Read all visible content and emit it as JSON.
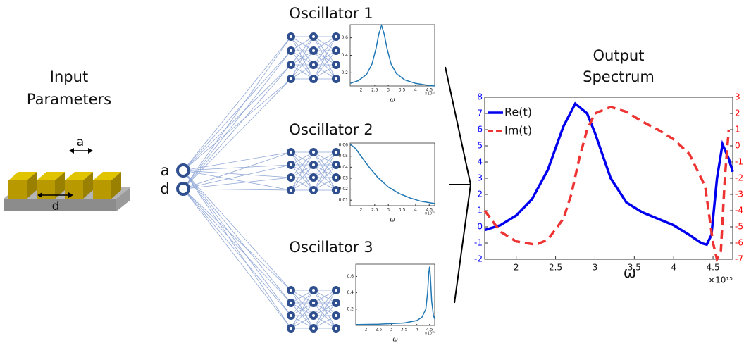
{
  "input": {
    "title": [
      "Input",
      "Parameters"
    ],
    "labels": [
      "a",
      "d"
    ]
  },
  "nodes": [
    "a",
    "d"
  ],
  "oscillators": [
    {
      "title": "Oscillator 1",
      "plot": {
        "x": [
          1.6,
          1.9,
          2.2,
          2.4,
          2.55,
          2.65,
          2.75,
          2.85,
          2.95,
          3.1,
          3.3,
          3.6,
          4.0,
          4.4,
          4.7
        ],
        "values": [
          0.08,
          0.11,
          0.18,
          0.3,
          0.48,
          0.64,
          0.74,
          0.64,
          0.48,
          0.3,
          0.19,
          0.12,
          0.08,
          0.06,
          0.05
        ],
        "xlim": [
          1.6,
          4.7
        ],
        "ylim": [
          0.05,
          0.75
        ],
        "xticks": [
          2,
          2.5,
          3,
          3.5,
          4,
          4.5
        ],
        "yticks": [
          0.2,
          0.4,
          0.6
        ],
        "xlabel": "ω",
        "x_exponent": "×10¹⁵",
        "color": "#1f77b4"
      }
    },
    {
      "title": "Oscillator 2",
      "plot": {
        "x": [
          1.6,
          1.8,
          2.0,
          2.3,
          2.6,
          3.0,
          3.4,
          3.8,
          4.2,
          4.7
        ],
        "values": [
          0.061,
          0.057,
          0.05,
          0.04,
          0.031,
          0.022,
          0.016,
          0.012,
          0.009,
          0.007
        ],
        "xlim": [
          1.6,
          4.7
        ],
        "ylim": [
          0.005,
          0.062
        ],
        "xticks": [
          2,
          2.5,
          3,
          3.5,
          4,
          4.5
        ],
        "yticks": [
          0.01,
          0.02,
          0.03,
          0.04,
          0.05,
          0.06
        ],
        "xlabel": "ω",
        "x_exponent": "×10¹⁵",
        "color": "#1f77b4"
      }
    },
    {
      "title": "Oscillator 3",
      "plot": {
        "x": [
          1.6,
          2.5,
          3.5,
          4.0,
          4.2,
          4.35,
          4.42,
          4.47,
          4.5,
          4.53,
          4.58,
          4.65,
          4.7
        ],
        "values": [
          0.01,
          0.015,
          0.03,
          0.06,
          0.1,
          0.2,
          0.4,
          0.65,
          0.72,
          0.6,
          0.3,
          0.12,
          0.08
        ],
        "xlim": [
          1.6,
          4.7
        ],
        "ylim": [
          0,
          0.75
        ],
        "xticks": [
          2,
          2.5,
          3,
          3.5,
          4,
          4.5
        ],
        "yticks": [
          0.2,
          0.4,
          0.6
        ],
        "xlabel": "ω",
        "x_exponent": "×10¹⁵",
        "color": "#1f77b4"
      }
    }
  ],
  "output": {
    "title": [
      "Output",
      "Spectrum"
    ],
    "chart": {
      "type": "line",
      "xlabel": "ω",
      "x_exponent": "×10¹⁵",
      "xlim": [
        1.6,
        4.75
      ],
      "xticks": [
        2,
        2.5,
        3,
        3.5,
        4,
        4.5
      ],
      "ylim": [
        -2,
        8
      ],
      "yticks": [
        -2,
        -1,
        0,
        1,
        2,
        3,
        4,
        5,
        6,
        7,
        8
      ],
      "y_tick_color": "#0000ff",
      "y2lim": [
        -7,
        3
      ],
      "y2ticks": [
        -7,
        -6,
        -5,
        -4,
        -3,
        -2,
        -1,
        0,
        1,
        2,
        3
      ],
      "y2_tick_color": "#ff0000",
      "legend": "upper left",
      "series": [
        {
          "name": "Re(t)",
          "color": "#0000ee",
          "dash": false,
          "x": [
            1.6,
            1.8,
            2.0,
            2.2,
            2.4,
            2.6,
            2.75,
            2.9,
            3.0,
            3.2,
            3.4,
            3.6,
            3.8,
            4.0,
            4.2,
            4.35,
            4.42,
            4.48,
            4.55,
            4.62,
            4.7,
            4.75
          ],
          "values": [
            -0.2,
            0.1,
            0.7,
            1.7,
            3.5,
            6.2,
            7.6,
            7.0,
            5.8,
            3.0,
            1.5,
            0.9,
            0.5,
            0.1,
            -0.5,
            -1.0,
            -1.1,
            -0.5,
            3.0,
            5.1,
            4.2,
            3.4
          ]
        },
        {
          "name": "Im(t)",
          "color": "#ee3333",
          "dash": true,
          "axis": "y2",
          "x": [
            1.6,
            1.8,
            2.0,
            2.25,
            2.4,
            2.6,
            2.7,
            2.8,
            2.9,
            3.0,
            3.2,
            3.4,
            3.6,
            3.8,
            4.0,
            4.2,
            4.4,
            4.5,
            4.55,
            4.6,
            4.65,
            4.7
          ],
          "values": [
            -4.0,
            -5.3,
            -5.9,
            -6.1,
            -5.8,
            -4.5,
            -3.0,
            -0.8,
            1.0,
            2.0,
            2.4,
            2.1,
            1.5,
            1.0,
            0.4,
            -0.5,
            -2.5,
            -6.0,
            -7.0,
            -6.5,
            -2.0,
            1.0
          ]
        }
      ]
    }
  }
}
